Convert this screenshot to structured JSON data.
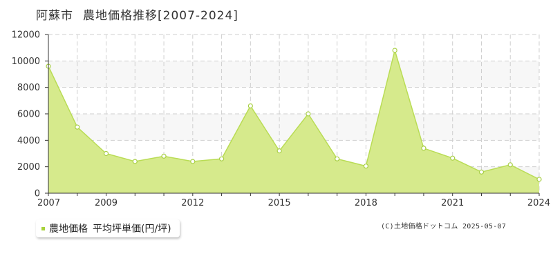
{
  "header": {
    "city": "阿蘇市",
    "subject": "農地価格推移[2007-2024]"
  },
  "legend": {
    "label": "農地価格",
    "measure": "平均坪単価(円/坪)"
  },
  "copyright": "(C)土地価格ドットコム 2025-05-07",
  "colors": {
    "fill": "#d6ea8c",
    "line": "#b9dc55",
    "marker_stroke": "#a8cf45",
    "legend_swatch": "#a8d23a",
    "band": "#f7f7f7"
  },
  "chart_data": {
    "type": "area",
    "x": [
      2007,
      2008,
      2009,
      2010,
      2011,
      2012,
      2013,
      2014,
      2015,
      2016,
      2017,
      2018,
      2019,
      2020,
      2021,
      2022,
      2023,
      2024
    ],
    "series": [
      {
        "name": "農地価格",
        "values": [
          9600,
          5000,
          3000,
          2400,
          2800,
          2400,
          2600,
          6600,
          3200,
          6000,
          2600,
          2050,
          10800,
          3400,
          2650,
          1600,
          2150,
          1050
        ]
      }
    ],
    "xticks": [
      "2007",
      "2009",
      "2012",
      "2015",
      "2018",
      "2021",
      "2024"
    ],
    "yticks": [
      "0",
      "2000",
      "4000",
      "6000",
      "8000",
      "10000",
      "12000"
    ],
    "ylim": [
      0,
      12000
    ],
    "xlim": [
      2007,
      2024
    ],
    "grid": true,
    "markers": true
  }
}
